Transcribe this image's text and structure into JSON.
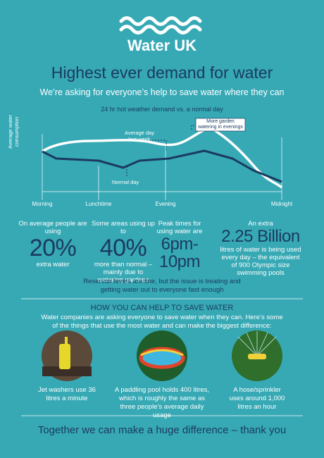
{
  "header": {
    "logo": "Water UK",
    "title": "Highest ever demand for water",
    "subtitle": "We’re asking for everyone’s help to save water where they can"
  },
  "chart": {
    "title": "24 hr hot weather demand vs. a normal day",
    "y_label": "Average water consumption",
    "annotations": [
      "Average day last week",
      "More garden watering in evenings",
      "Normal day"
    ],
    "x_labels": [
      "Morning",
      "Lunchtime",
      "Evening",
      "Midnight"
    ]
  },
  "stats": [
    {
      "lead": "On average people are using",
      "figure": "20%",
      "detail": "extra water"
    },
    {
      "lead": "Some areas using up to",
      "figure": "40%",
      "detail": "more than normal – mainly due to watering gardens"
    },
    {
      "lead": "Peak times for using water are",
      "figure": "6pm-10pm"
    },
    {
      "lead": "An extra",
      "figure": "2.25 Billion",
      "detail": "litres of water is being used every day – the equivalent of 900 Olympic size swimming pools"
    }
  ],
  "note": "Reservoir levels are fine, but the issue is treating and getting water out to everyone fast enough",
  "help": {
    "heading": "HOW YOU CAN HELP TO SAVE WATER",
    "intro": "Water companies are asking everyone to save water when they can. Here’s some of the things that use the most water and can make the biggest difference:",
    "items": [
      "Jet washers use 36 litres a minute",
      "A paddling pool holds 400 litres, which is roughly the same as three people’s average daily usage",
      "A hose/sprinkler uses around 1,000 litres an hour"
    ]
  },
  "footer": "Together we can make a huge difference – thank you"
}
